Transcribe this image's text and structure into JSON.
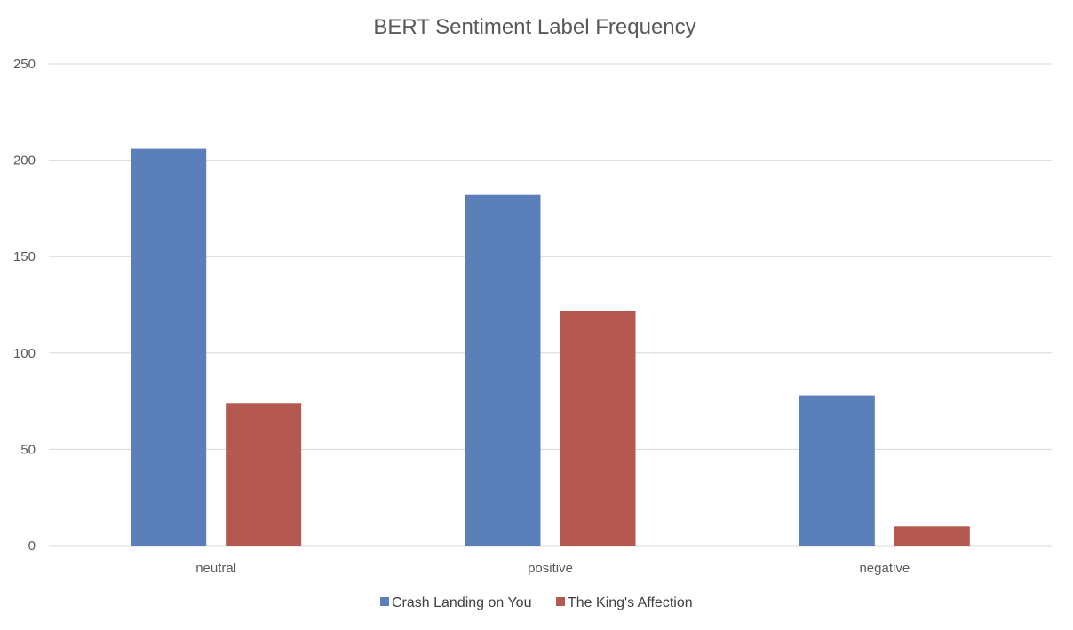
{
  "chart_data": {
    "type": "bar",
    "title": "BERT Sentiment Label Frequency",
    "categories": [
      "neutral",
      "positive",
      "negative"
    ],
    "series": [
      {
        "name": "Crash Landing on You",
        "values": [
          206,
          182,
          78
        ],
        "color": "#5b80b9"
      },
      {
        "name": "The King's Affection",
        "values": [
          74,
          122,
          10
        ],
        "color": "#b5584f"
      }
    ],
    "y_ticks": [
      "0",
      "50",
      "100",
      "150",
      "200",
      "250"
    ],
    "ylim": [
      0,
      250
    ],
    "grid": true,
    "legend_position": "bottom"
  }
}
